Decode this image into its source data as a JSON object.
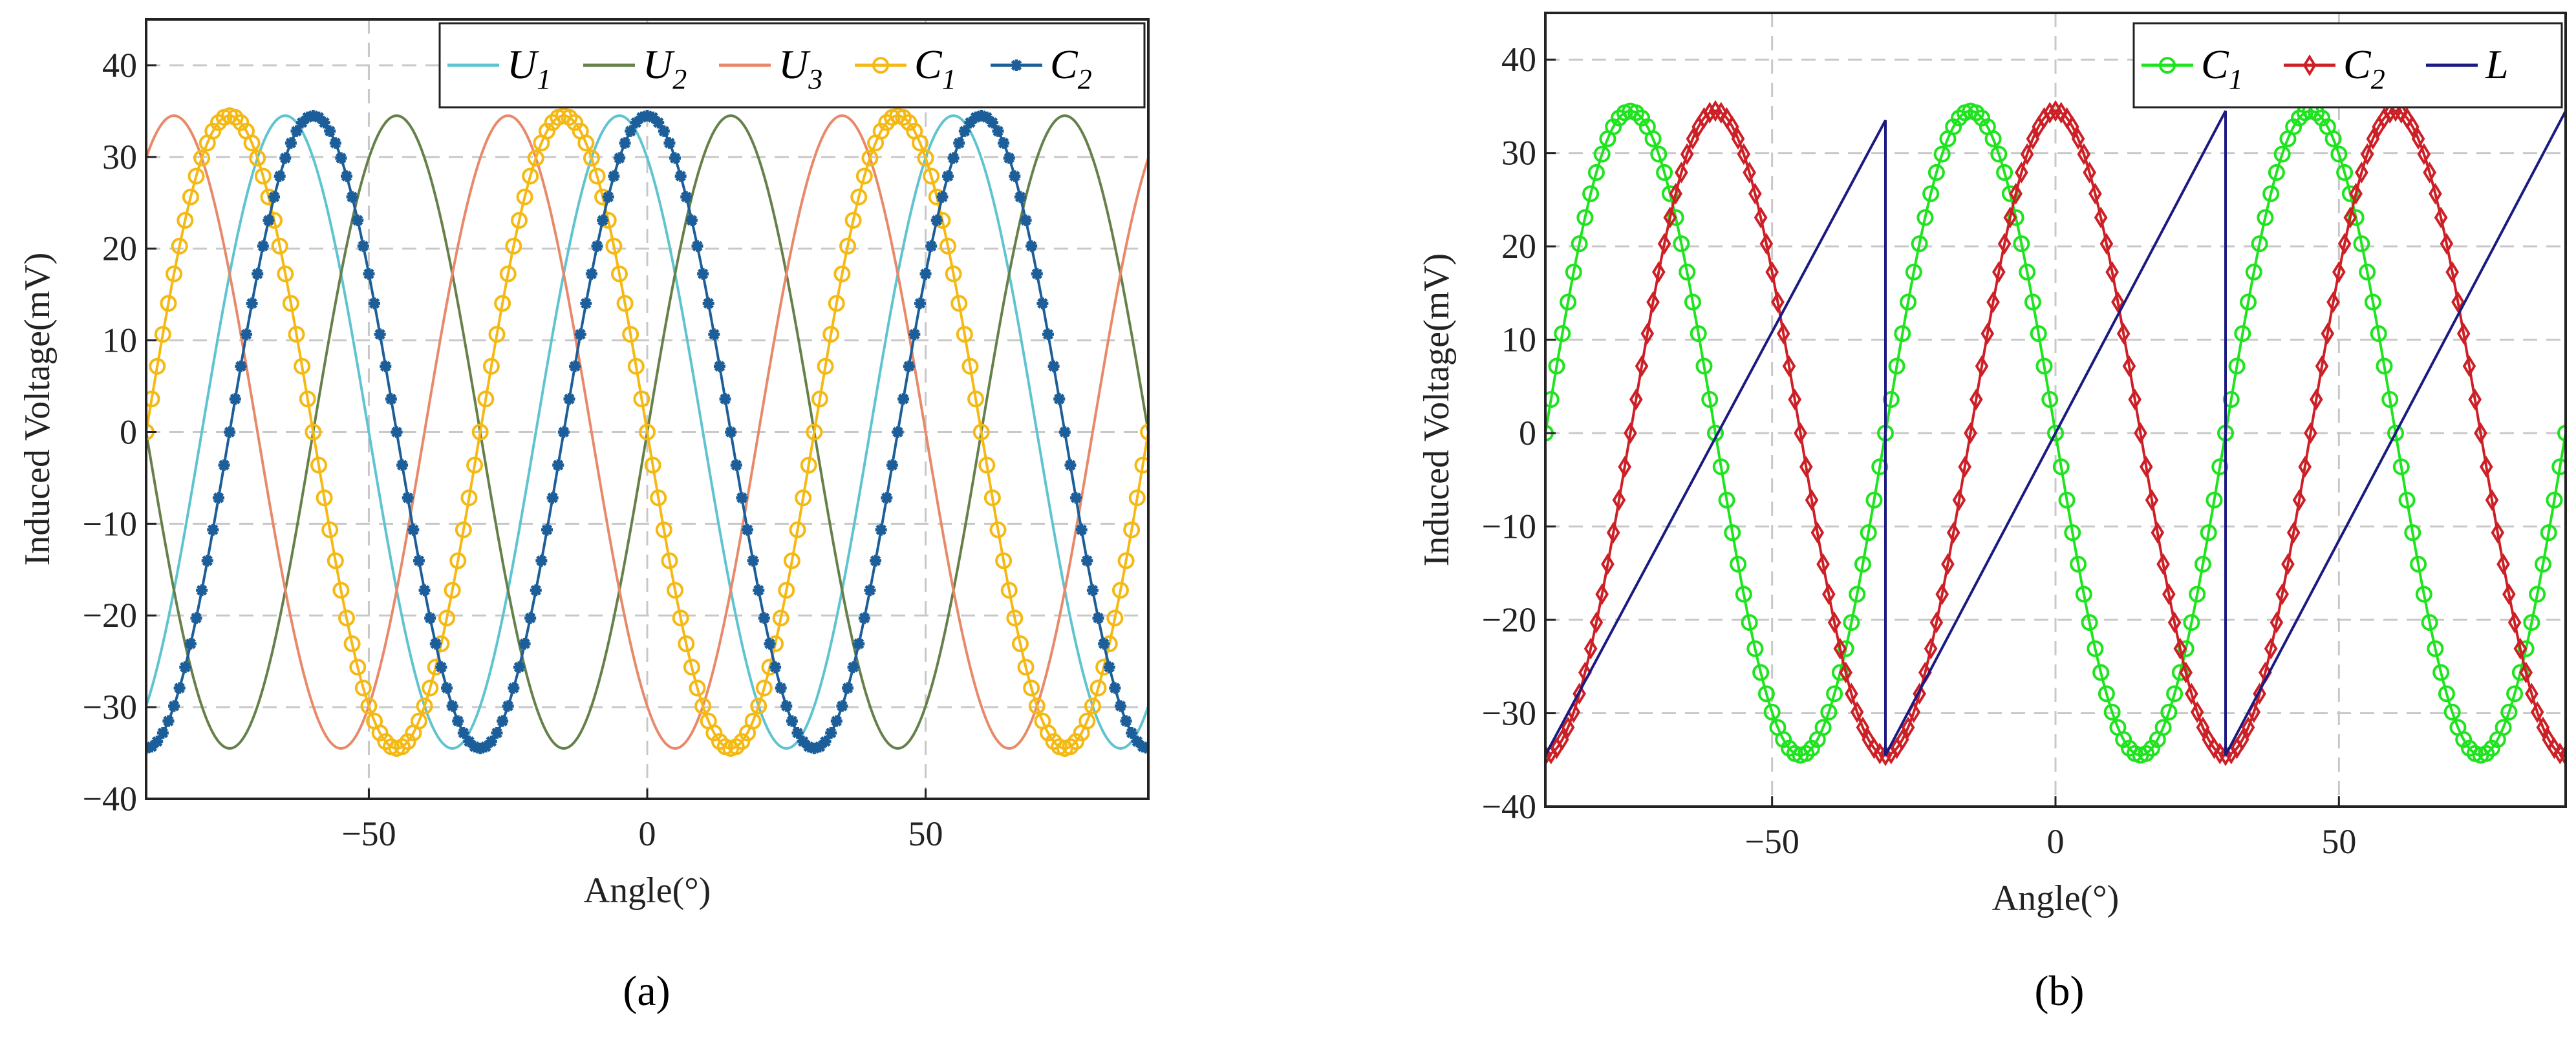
{
  "chart_data": [
    {
      "type": "line",
      "panel_label": "(a)",
      "xlabel": "Angle(°)",
      "ylabel": "Induced Voltage(mV)",
      "xlim": [
        -90,
        90
      ],
      "ylim": [
        -40,
        45
      ],
      "xticks": [
        -50,
        0,
        50
      ],
      "yticks": [
        -40,
        -30,
        -20,
        -10,
        0,
        10,
        20,
        30,
        40
      ],
      "grid": true,
      "legend_position": "top-right",
      "series": [
        {
          "name": "U",
          "sub": "1",
          "color": "#5fc4d0",
          "marker": "none",
          "amplitude": 34.5,
          "period_deg": 60,
          "phase_deg": 120
        },
        {
          "name": "U",
          "sub": "2",
          "color": "#66804a",
          "marker": "none",
          "amplitude": 34.5,
          "period_deg": 60,
          "phase_deg": 0
        },
        {
          "name": "U",
          "sub": "3",
          "color": "#e8896a",
          "marker": "none",
          "amplitude": 34.5,
          "period_deg": 60,
          "phase_deg": -120
        },
        {
          "name": "C",
          "sub": "1",
          "color": "#f5b915",
          "marker": "circle",
          "amplitude": 34.5,
          "period_deg": 60,
          "phase_deg": 180
        },
        {
          "name": "C",
          "sub": "2",
          "color": "#1c5e99",
          "marker": "star",
          "amplitude": 34.5,
          "period_deg": 60,
          "phase_deg": 90
        }
      ]
    },
    {
      "type": "line",
      "panel_label": "(b)",
      "xlabel": "Angle(°)",
      "ylabel": "Induced Voltage(mV)",
      "xlim": [
        -90,
        90
      ],
      "ylim": [
        -40,
        45
      ],
      "xticks": [
        -50,
        0,
        50
      ],
      "yticks": [
        -40,
        -30,
        -20,
        -10,
        0,
        10,
        20,
        30,
        40
      ],
      "grid": true,
      "legend_position": "top-right",
      "series": [
        {
          "name": "C",
          "sub": "1",
          "color": "#1ee31e",
          "marker": "circle",
          "amplitude": 34.5,
          "period_deg": 60,
          "phase_deg": 180
        },
        {
          "name": "C",
          "sub": "2",
          "color": "#cc1f26",
          "marker": "diamond",
          "amplitude": 34.5,
          "period_deg": 60,
          "phase_deg": 90
        },
        {
          "name": "L",
          "sub": "",
          "color": "#1a1a80",
          "marker": "none",
          "kind": "sawtooth",
          "x": [
            -90,
            -30,
            -30,
            30,
            30,
            90
          ],
          "y": [
            -34.5,
            33.5,
            -34.5,
            34.5,
            -34.5,
            34.5
          ]
        }
      ]
    }
  ]
}
